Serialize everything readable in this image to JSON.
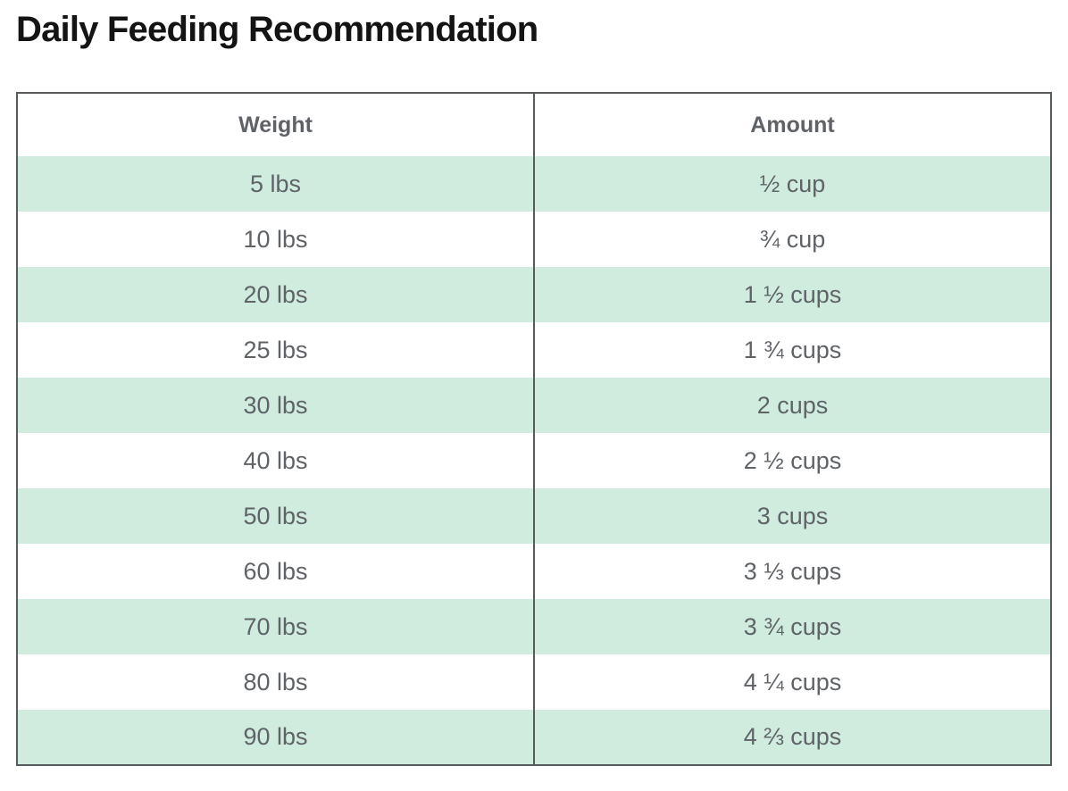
{
  "page": {
    "title": "Daily Feeding Recommendation"
  },
  "table": {
    "columns": [
      "Weight",
      "Amount"
    ],
    "rows": [
      {
        "weight": "5 lbs",
        "amount": "½ cup"
      },
      {
        "weight": "10 lbs",
        "amount": "¾ cup"
      },
      {
        "weight": "20 lbs",
        "amount": "1 ½ cups"
      },
      {
        "weight": "25 lbs",
        "amount": "1 ¾ cups"
      },
      {
        "weight": "30 lbs",
        "amount": "2 cups"
      },
      {
        "weight": "40 lbs",
        "amount": "2 ½ cups"
      },
      {
        "weight": "50 lbs",
        "amount": "3 cups"
      },
      {
        "weight": "60 lbs",
        "amount": "3 ⅓ cups"
      },
      {
        "weight": "70 lbs",
        "amount": "3 ¾ cups"
      },
      {
        "weight": "80 lbs",
        "amount": "4 ¼ cups"
      },
      {
        "weight": "90 lbs",
        "amount": "4 ⅔ cups"
      }
    ]
  },
  "colors": {
    "title": "#141414",
    "text": "#5f6368",
    "border": "#565b5d",
    "row_alt": "#d0ecdf",
    "bg": "#ffffff"
  }
}
